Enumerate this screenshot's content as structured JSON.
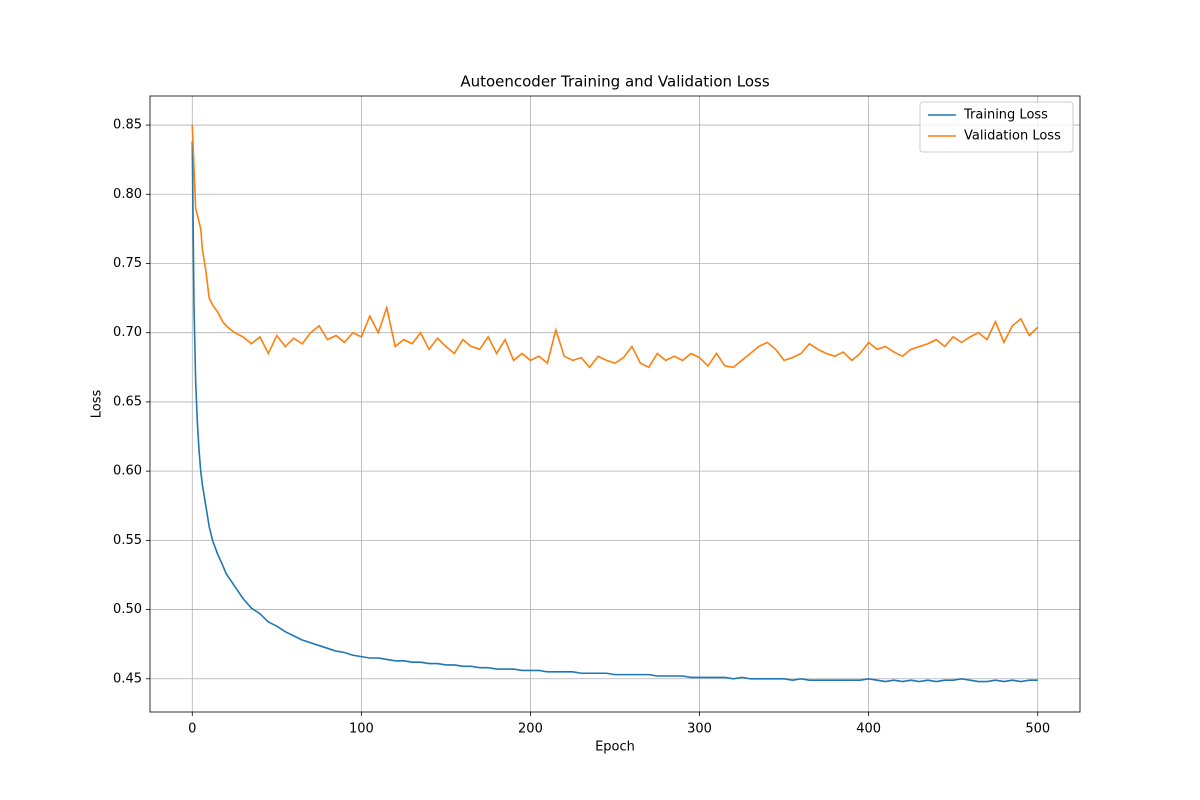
{
  "chart_data": {
    "type": "line",
    "title": "Autoencoder Training and Validation Loss",
    "x_label": "Epoch",
    "y_label": "Loss",
    "x": [
      0,
      1,
      2,
      3,
      4,
      5,
      6,
      8,
      10,
      12,
      15,
      18,
      20,
      25,
      30,
      35,
      40,
      45,
      50,
      55,
      60,
      65,
      70,
      75,
      80,
      85,
      90,
      95,
      100,
      105,
      110,
      115,
      120,
      125,
      130,
      135,
      140,
      145,
      150,
      155,
      160,
      165,
      170,
      175,
      180,
      185,
      190,
      195,
      200,
      205,
      210,
      215,
      220,
      225,
      230,
      235,
      240,
      245,
      250,
      255,
      260,
      265,
      270,
      275,
      280,
      285,
      290,
      295,
      300,
      305,
      310,
      315,
      320,
      325,
      330,
      335,
      340,
      345,
      350,
      355,
      360,
      365,
      370,
      375,
      380,
      385,
      390,
      395,
      400,
      405,
      410,
      415,
      420,
      425,
      430,
      435,
      440,
      445,
      450,
      455,
      460,
      465,
      470,
      475,
      480,
      485,
      490,
      495,
      500
    ],
    "series": [
      {
        "name": "Training Loss",
        "color": "#1f77b4",
        "values": [
          0.838,
          0.72,
          0.665,
          0.635,
          0.615,
          0.6,
          0.59,
          0.575,
          0.56,
          0.55,
          0.54,
          0.532,
          0.526,
          0.517,
          0.508,
          0.501,
          0.497,
          0.491,
          0.488,
          0.484,
          0.481,
          0.478,
          0.476,
          0.474,
          0.472,
          0.47,
          0.469,
          0.467,
          0.466,
          0.465,
          0.465,
          0.464,
          0.463,
          0.463,
          0.462,
          0.462,
          0.461,
          0.461,
          0.46,
          0.46,
          0.459,
          0.459,
          0.458,
          0.458,
          0.457,
          0.457,
          0.457,
          0.456,
          0.456,
          0.456,
          0.455,
          0.455,
          0.455,
          0.455,
          0.454,
          0.454,
          0.454,
          0.454,
          0.453,
          0.453,
          0.453,
          0.453,
          0.453,
          0.452,
          0.452,
          0.452,
          0.452,
          0.451,
          0.451,
          0.451,
          0.451,
          0.451,
          0.45,
          0.451,
          0.45,
          0.45,
          0.45,
          0.45,
          0.45,
          0.449,
          0.45,
          0.449,
          0.449,
          0.449,
          0.449,
          0.449,
          0.449,
          0.449,
          0.45,
          0.449,
          0.448,
          0.449,
          0.448,
          0.449,
          0.448,
          0.449,
          0.448,
          0.449,
          0.449,
          0.45,
          0.449,
          0.448,
          0.448,
          0.449,
          0.448,
          0.449,
          0.448,
          0.449,
          0.449
        ]
      },
      {
        "name": "Validation Loss",
        "color": "#ff7f0e",
        "values": [
          0.85,
          0.82,
          0.79,
          0.785,
          0.78,
          0.775,
          0.76,
          0.745,
          0.725,
          0.72,
          0.715,
          0.708,
          0.705,
          0.7,
          0.697,
          0.692,
          0.697,
          0.685,
          0.698,
          0.69,
          0.696,
          0.692,
          0.7,
          0.705,
          0.695,
          0.698,
          0.693,
          0.7,
          0.697,
          0.712,
          0.7,
          0.718,
          0.69,
          0.695,
          0.692,
          0.7,
          0.688,
          0.696,
          0.69,
          0.685,
          0.695,
          0.69,
          0.688,
          0.697,
          0.685,
          0.695,
          0.68,
          0.685,
          0.68,
          0.683,
          0.678,
          0.702,
          0.683,
          0.68,
          0.682,
          0.675,
          0.683,
          0.68,
          0.678,
          0.682,
          0.69,
          0.678,
          0.675,
          0.685,
          0.68,
          0.683,
          0.68,
          0.685,
          0.682,
          0.676,
          0.685,
          0.676,
          0.675,
          0.68,
          0.685,
          0.69,
          0.693,
          0.688,
          0.68,
          0.682,
          0.685,
          0.692,
          0.688,
          0.685,
          0.683,
          0.686,
          0.68,
          0.685,
          0.693,
          0.688,
          0.69,
          0.686,
          0.683,
          0.688,
          0.69,
          0.692,
          0.695,
          0.69,
          0.697,
          0.693,
          0.697,
          0.7,
          0.695,
          0.708,
          0.693,
          0.705,
          0.71,
          0.698,
          0.704
        ]
      }
    ],
    "xlim": [
      -25,
      525
    ],
    "ylim": [
      0.426,
      0.871
    ],
    "xticks": [
      0,
      100,
      200,
      300,
      400,
      500
    ],
    "yticks": [
      0.45,
      {
        "value": 0.5,
        "label": "0.50"
      },
      0.55,
      {
        "value": 0.6,
        "label": "0.60"
      },
      0.65,
      {
        "value": 0.7,
        "label": "0.70"
      },
      0.75,
      {
        "value": 0.8,
        "label": "0.80"
      },
      0.85
    ],
    "grid": true,
    "legend": "upper right"
  }
}
